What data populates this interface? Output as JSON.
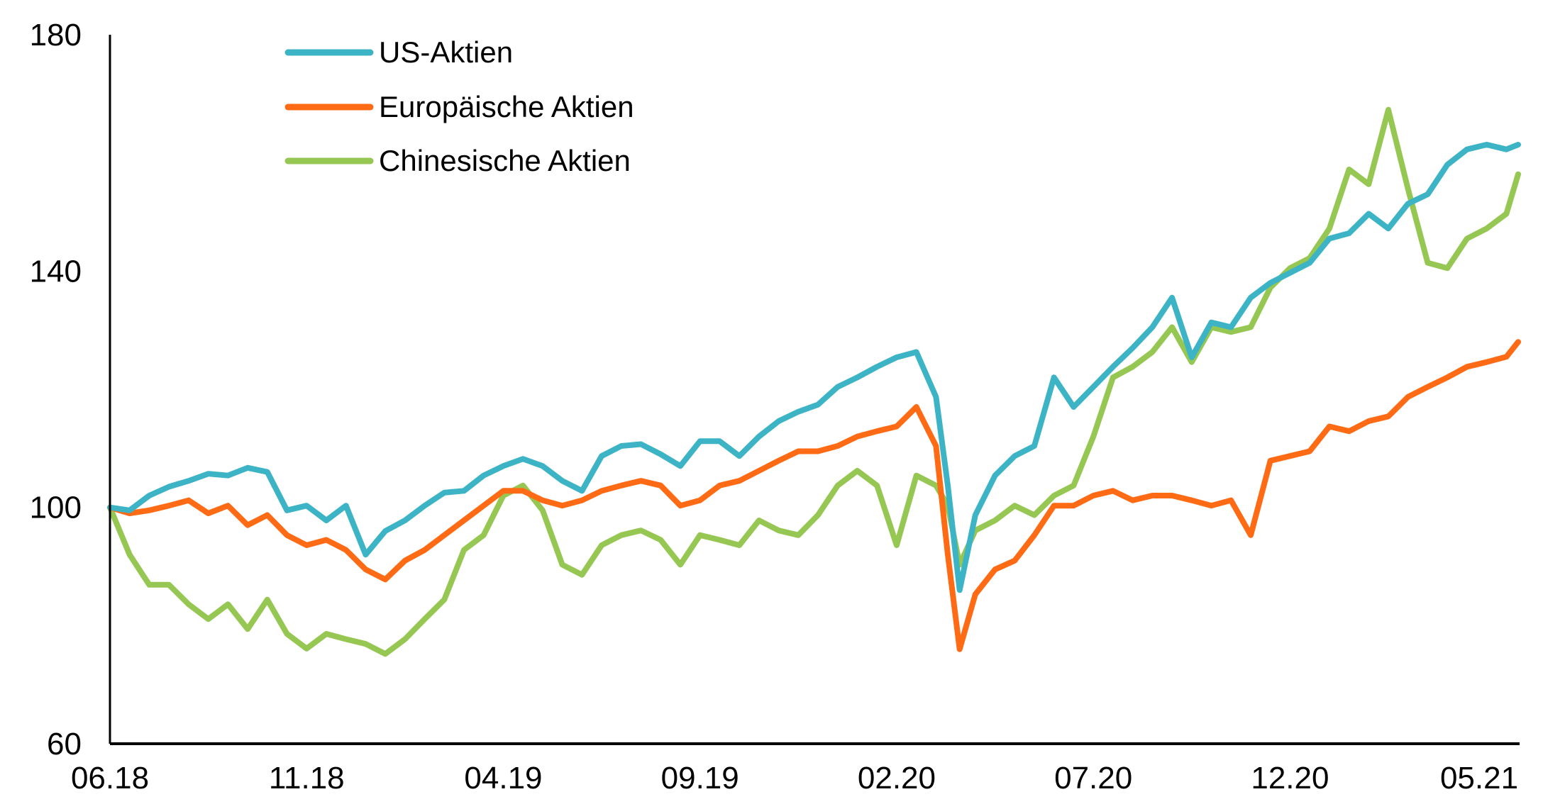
{
  "chart_data": {
    "type": "line",
    "title": "",
    "xlabel": "",
    "ylabel": "",
    "ylim": [
      60,
      180
    ],
    "yticks": [
      "60",
      "100",
      "140",
      "180"
    ],
    "ytick_values": [
      60,
      100,
      140,
      180
    ],
    "x_unit": "months since 06.2018",
    "xlim": [
      0,
      35.8
    ],
    "xticks": [
      "06.18",
      "11.18",
      "04.19",
      "09.19",
      "02.20",
      "07.20",
      "12.20",
      "05.21"
    ],
    "xtick_values": [
      0,
      5,
      10,
      15,
      20,
      25,
      30,
      35
    ],
    "grid": false,
    "legend_position": "top-left",
    "x": [
      0,
      0.5,
      1,
      1.5,
      2,
      2.5,
      3,
      3.5,
      4,
      4.5,
      5,
      5.5,
      6,
      6.5,
      7,
      7.5,
      8,
      8.5,
      9,
      9.5,
      10,
      10.5,
      11,
      11.5,
      12,
      12.5,
      13,
      13.5,
      14,
      14.5,
      15,
      15.5,
      16,
      16.5,
      17,
      17.5,
      18,
      18.5,
      19,
      19.5,
      20,
      20.5,
      21,
      21.3,
      21.6,
      22,
      22.5,
      23,
      23.5,
      24,
      24.5,
      25,
      25.5,
      26,
      26.5,
      27,
      27.5,
      28,
      28.5,
      29,
      29.5,
      30,
      30.5,
      31,
      31.5,
      32,
      32.5,
      33,
      33.5,
      34,
      34.5,
      35,
      35.5,
      35.8
    ],
    "series": [
      {
        "name": "US-Aktien",
        "color": "#3cb4c6",
        "values": [
          100,
          99.5,
          102,
          103.5,
          104.5,
          105.7,
          105.4,
          106.7,
          106,
          99.5,
          100.3,
          97.8,
          100.3,
          92,
          96,
          97.8,
          100.3,
          102.5,
          102.8,
          105.4,
          107,
          108.2,
          107,
          104.5,
          102.8,
          108.7,
          110.4,
          110.7,
          109,
          107,
          111.2,
          111.2,
          108.7,
          112,
          114.6,
          116.2,
          117.4,
          120.4,
          122,
          123.8,
          125.4,
          126.3,
          118.7,
          103.7,
          86,
          98.7,
          105.4,
          108.7,
          110.4,
          122,
          117,
          120.4,
          123.8,
          127,
          130.5,
          135.5,
          125.4,
          131.3,
          130.5,
          135.5,
          138,
          139.7,
          141.4,
          145.5,
          146.4,
          149.7,
          147.2,
          151.4,
          153,
          158,
          160.6,
          161.4,
          160.6,
          161.4
        ]
      },
      {
        "name": "Europäische Aktien",
        "color": "#ff6a14",
        "values": [
          100,
          99,
          99.5,
          100.3,
          101.2,
          99,
          100.3,
          97,
          98.7,
          95.3,
          93.6,
          94.5,
          92.8,
          89.5,
          87.8,
          91,
          92.8,
          95.3,
          97.8,
          100.3,
          102.8,
          102.8,
          101.2,
          100.3,
          101.2,
          102.8,
          103.7,
          104.5,
          103.7,
          100.3,
          101.2,
          103.7,
          104.5,
          106.2,
          107.9,
          109.5,
          109.5,
          110.4,
          112,
          112.9,
          113.7,
          117,
          110.4,
          92,
          76,
          85.3,
          89.5,
          91,
          95.3,
          100.3,
          100.3,
          102,
          102.8,
          101.2,
          102,
          102,
          101.2,
          100.3,
          101.2,
          95.3,
          107.9,
          108.7,
          109.5,
          113.7,
          112.9,
          114.6,
          115.4,
          118.7,
          120.4,
          122,
          123.8,
          124.6,
          125.5,
          128
        ]
      },
      {
        "name": "Chinesische Aktien",
        "color": "#95c752",
        "values": [
          100,
          92,
          86.9,
          86.9,
          83.6,
          81.1,
          83.6,
          79.4,
          84.4,
          78.6,
          76.1,
          78.6,
          77.7,
          76.9,
          75.2,
          77.7,
          81.1,
          84.4,
          92.8,
          95.3,
          102,
          103.7,
          99.5,
          90.3,
          88.6,
          93.6,
          95.3,
          96.1,
          94.5,
          90.3,
          95.3,
          94.5,
          93.6,
          97.8,
          96.1,
          95.3,
          98.7,
          103.7,
          106.2,
          103.7,
          93.6,
          105.4,
          103.7,
          100.3,
          90.3,
          96.1,
          97.8,
          100.3,
          98.7,
          102,
          103.7,
          112,
          122,
          123.8,
          126.3,
          130.5,
          124.6,
          130.5,
          129.7,
          130.5,
          137.2,
          140.5,
          142.2,
          147.2,
          157.2,
          154.7,
          167.3,
          153.9,
          141.4,
          140.5,
          145.5,
          147.2,
          149.7,
          156.4
        ]
      }
    ]
  }
}
